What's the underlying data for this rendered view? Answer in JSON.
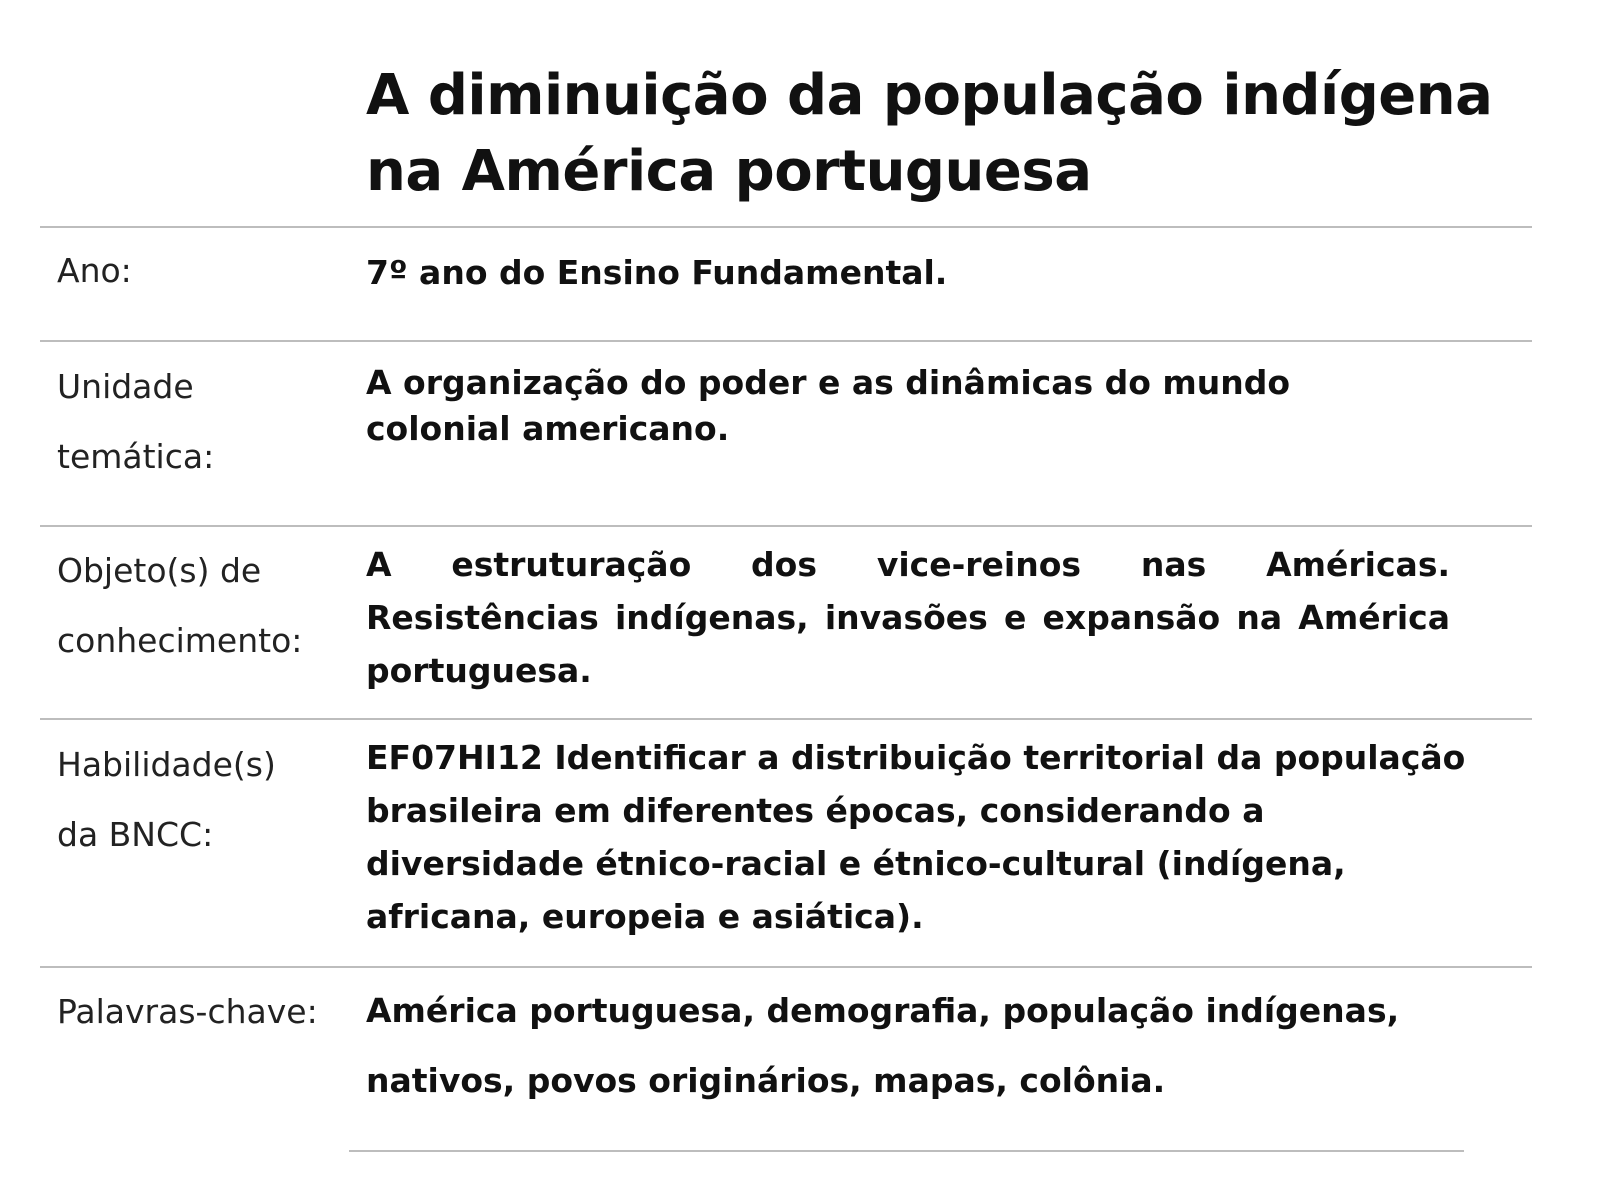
{
  "title": "A diminuição da população indígena na América portuguesa",
  "rows": [
    {
      "label": "Ano:",
      "value": "7º ano do Ensino Fundamental."
    },
    {
      "label": "Unidade temática:",
      "value": "A organização do poder e as dinâmicas do mundo colonial americano."
    },
    {
      "label": "Objeto(s) de conhecimento:",
      "value": "A estruturação dos vice-reinos nas Américas. Resistências indígenas, invasões e expansão na América portuguesa."
    },
    {
      "label": "Habilidade(s) da BNCC:",
      "value": "EF07HI12 Identificar a distribuição territorial da população brasileira em diferentes épocas, considerando a diversidade étnico-racial e étnico-cultural (indígena, africana, europeia e asiática)."
    },
    {
      "label": "Palavras-chave:",
      "value": "América portuguesa, demografia, população indígenas, nativos, povos originários, mapas, colônia."
    }
  ]
}
